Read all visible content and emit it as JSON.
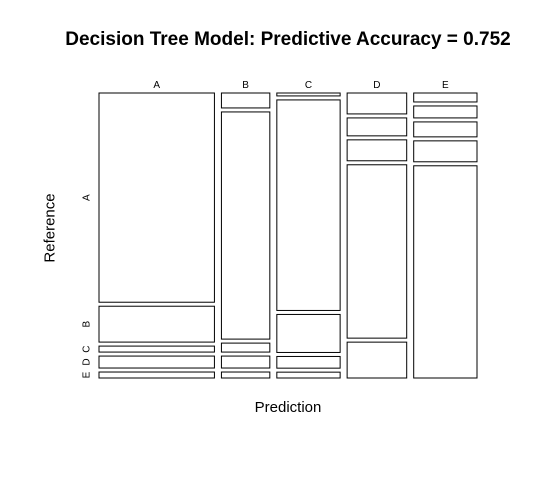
{
  "chart_data": {
    "type": "mosaic",
    "title": "Decision Tree Model: Predictive Accuracy = 0.752",
    "xlabel": "Prediction",
    "ylabel": "Reference",
    "x_categories": [
      "A",
      "B",
      "C",
      "D",
      "E"
    ],
    "y_categories": [
      "A",
      "B",
      "C",
      "D",
      "E"
    ],
    "x_marginals": [
      0.31,
      0.13,
      0.17,
      0.16,
      0.17
    ],
    "conditional_proportions": [
      [
        0.7,
        0.12,
        0.02,
        0.04,
        0.02
      ],
      [
        0.05,
        0.76,
        0.03,
        0.04,
        0.02
      ],
      [
        0.01,
        0.72,
        0.13,
        0.04,
        0.02
      ],
      [
        0.07,
        0.06,
        0.07,
        0.58,
        0.12
      ],
      [
        0.03,
        0.04,
        0.05,
        0.07,
        0.71
      ]
    ]
  }
}
